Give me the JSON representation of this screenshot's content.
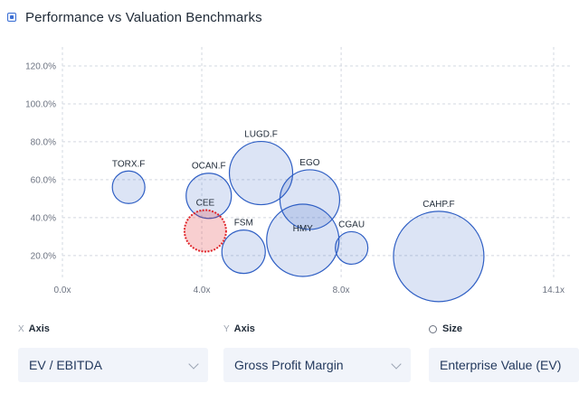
{
  "header": {
    "title": "Performance vs Valuation Benchmarks",
    "icon": "chart-legend-icon"
  },
  "controls": {
    "x_axis": {
      "prefix": "X",
      "label": "Axis",
      "value": "EV / EBITDA"
    },
    "y_axis": {
      "prefix": "Y",
      "label": "Axis",
      "value": "Gross Profit Margin"
    },
    "size": {
      "label": "Size",
      "value": "Enterprise Value (EV)"
    }
  },
  "chart_data": {
    "type": "scatter",
    "title": "Performance vs Valuation Benchmarks",
    "xlabel": "EV / EBITDA",
    "ylabel": "Gross Profit Margin",
    "x_ticks": [
      "0.0x",
      "4.0x",
      "8.0x",
      "14.1x"
    ],
    "y_ticks": [
      "20.0%",
      "40.0%",
      "60.0%",
      "80.0%",
      "100.0%",
      "120.0%"
    ],
    "xlim": [
      0,
      14.1
    ],
    "ylim": [
      8,
      130
    ],
    "grid": true,
    "highlight_color": "#e0262b",
    "bubble_color": "#2f5fc4",
    "points": [
      {
        "name": "TORX.F",
        "x": 1.9,
        "y": 56,
        "r": 18
      },
      {
        "name": "OCAN.F",
        "x": 4.2,
        "y": 51.5,
        "r": 25
      },
      {
        "name": "LUGD.F",
        "x": 5.7,
        "y": 63.5,
        "r": 35
      },
      {
        "name": "EGO",
        "x": 7.1,
        "y": 49.5,
        "r": 33
      },
      {
        "name": "HMY",
        "x": 6.9,
        "y": 28,
        "r": 40
      },
      {
        "name": "CEE",
        "x": 4.1,
        "y": 33,
        "r": 23,
        "highlight": true
      },
      {
        "name": "FSM",
        "x": 5.2,
        "y": 22,
        "r": 24
      },
      {
        "name": "CGAU",
        "x": 8.3,
        "y": 24,
        "r": 18
      },
      {
        "name": "CAHP.F",
        "x": 10.8,
        "y": 19.5,
        "r": 50
      }
    ]
  }
}
